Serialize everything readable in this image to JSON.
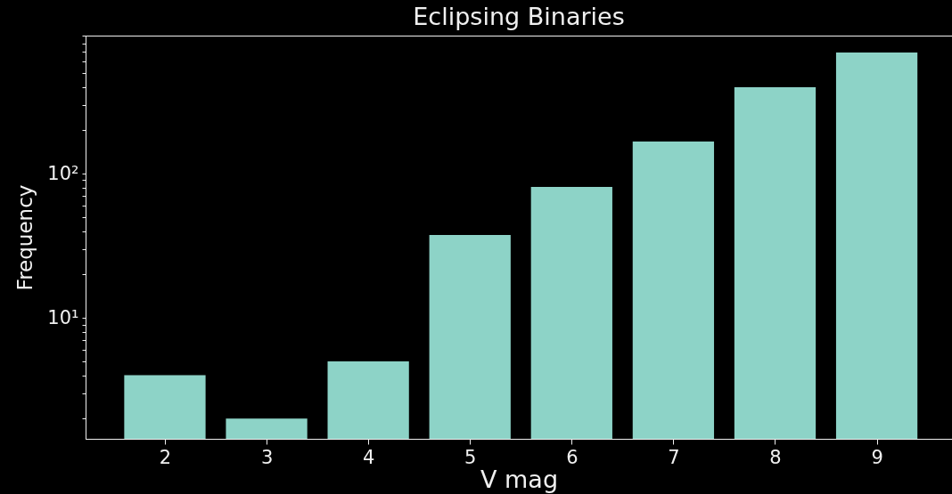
{
  "chart_data": {
    "type": "bar",
    "title": "Eclipsing Binaries",
    "xlabel": "V mag",
    "ylabel": "Frequency",
    "x": [
      2,
      3,
      4,
      5,
      6,
      7,
      8,
      9
    ],
    "values": [
      4,
      2,
      5,
      37.5,
      81,
      167,
      397,
      692
    ],
    "color": "#8dd3c7",
    "log": "y",
    "grid": false,
    "xlim": [
      1.22,
      9.74
    ],
    "xticks": [
      2,
      3,
      4,
      5,
      6,
      7,
      8,
      9
    ],
    "ylim": [
      1.45,
      906
    ],
    "yticks": [
      {
        "value": 2,
        "label": null
      },
      {
        "value": 3,
        "label": null
      },
      {
        "value": 4,
        "label": null
      },
      {
        "value": 5,
        "label": null
      },
      {
        "value": 6,
        "label": null
      },
      {
        "value": 7,
        "label": null
      },
      {
        "value": 8,
        "label": null
      },
      {
        "value": 9,
        "label": null
      },
      {
        "value": 10,
        "label": "10¹"
      },
      {
        "value": 20,
        "label": null
      },
      {
        "value": 30,
        "label": null
      },
      {
        "value": 40,
        "label": null
      },
      {
        "value": 50,
        "label": null
      },
      {
        "value": 60,
        "label": null
      },
      {
        "value": 70,
        "label": null
      },
      {
        "value": 80,
        "label": null
      },
      {
        "value": 90,
        "label": null
      },
      {
        "value": 100,
        "label": "10²"
      },
      {
        "value": 200,
        "label": null
      },
      {
        "value": 300,
        "label": null
      },
      {
        "value": 400,
        "label": null
      },
      {
        "value": 500,
        "label": null
      },
      {
        "value": 600,
        "label": null
      },
      {
        "value": 700,
        "label": null
      },
      {
        "value": 800,
        "label": null
      },
      {
        "value": 900,
        "label": null
      }
    ]
  }
}
